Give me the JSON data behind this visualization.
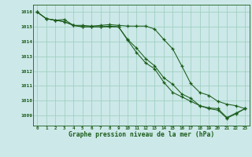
{
  "title": "Graphe pression niveau de la mer (hPa)",
  "bg_color": "#cce8e8",
  "grid_color": "#99ccbb",
  "line_color": "#1a5c1a",
  "xlim": [
    -0.5,
    23.5
  ],
  "ylim": [
    1008.3,
    1016.5
  ],
  "xticks": [
    0,
    1,
    2,
    3,
    4,
    5,
    6,
    7,
    8,
    9,
    10,
    11,
    12,
    13,
    14,
    15,
    16,
    17,
    18,
    19,
    20,
    21,
    22,
    23
  ],
  "yticks": [
    1009,
    1010,
    1011,
    1012,
    1013,
    1014,
    1015,
    1016
  ],
  "s1": [
    1016.0,
    1015.55,
    1015.45,
    1015.5,
    1015.1,
    1015.1,
    1015.05,
    1015.1,
    1015.15,
    1015.1,
    1015.05,
    1015.05,
    1015.05,
    1014.85,
    1014.15,
    1013.5,
    1012.35,
    1011.15,
    1010.55,
    1010.35,
    1009.95,
    1009.75,
    1009.65,
    1009.45
  ],
  "s2": [
    1016.0,
    1015.55,
    1015.45,
    1015.35,
    1015.1,
    1015.0,
    1015.0,
    1015.0,
    1015.05,
    1015.0,
    1014.15,
    1013.55,
    1012.85,
    1012.35,
    1011.55,
    1011.1,
    1010.45,
    1010.15,
    1009.65,
    1009.5,
    1009.45,
    1008.85,
    1009.15,
    1009.45
  ],
  "s3": [
    1016.0,
    1015.55,
    1015.45,
    1015.35,
    1015.1,
    1015.0,
    1015.0,
    1015.0,
    1015.0,
    1015.0,
    1014.1,
    1013.25,
    1012.55,
    1012.15,
    1011.25,
    1010.55,
    1010.25,
    1009.95,
    1009.65,
    1009.45,
    1009.35,
    1008.8,
    1009.1,
    1009.45
  ]
}
